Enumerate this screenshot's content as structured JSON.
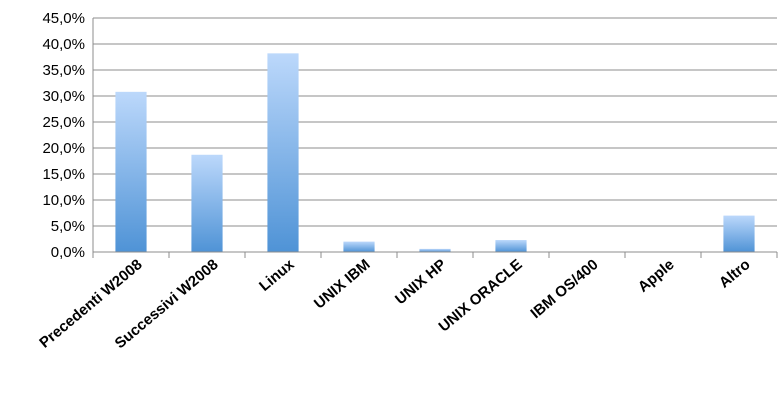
{
  "chart_data": {
    "type": "bar",
    "title": "",
    "xlabel": "",
    "ylabel": "",
    "categories": [
      "Precedenti W2008",
      "Successivi W2008",
      "Linux",
      "UNIX IBM",
      "UNIX HP",
      "UNIX ORACLE",
      "IBM OS/400",
      "Apple",
      "Altro"
    ],
    "values": [
      30.8,
      18.7,
      38.2,
      2.0,
      0.6,
      2.3,
      0.0,
      0.0,
      7.0
    ],
    "ylim": [
      0,
      45
    ],
    "yticks": [
      0,
      5,
      10,
      15,
      20,
      25,
      30,
      35,
      40,
      45
    ],
    "ytick_labels": [
      "0,0%",
      "5,0%",
      "10,0%",
      "15,0%",
      "20,0%",
      "25,0%",
      "30,0%",
      "35,0%",
      "40,0%",
      "45,0%"
    ],
    "grid": true,
    "legend": "none",
    "colors": {
      "bar_top": "#bcd8fb",
      "bar_bottom": "#4f93d6",
      "grid": "#8c8c8c"
    }
  }
}
